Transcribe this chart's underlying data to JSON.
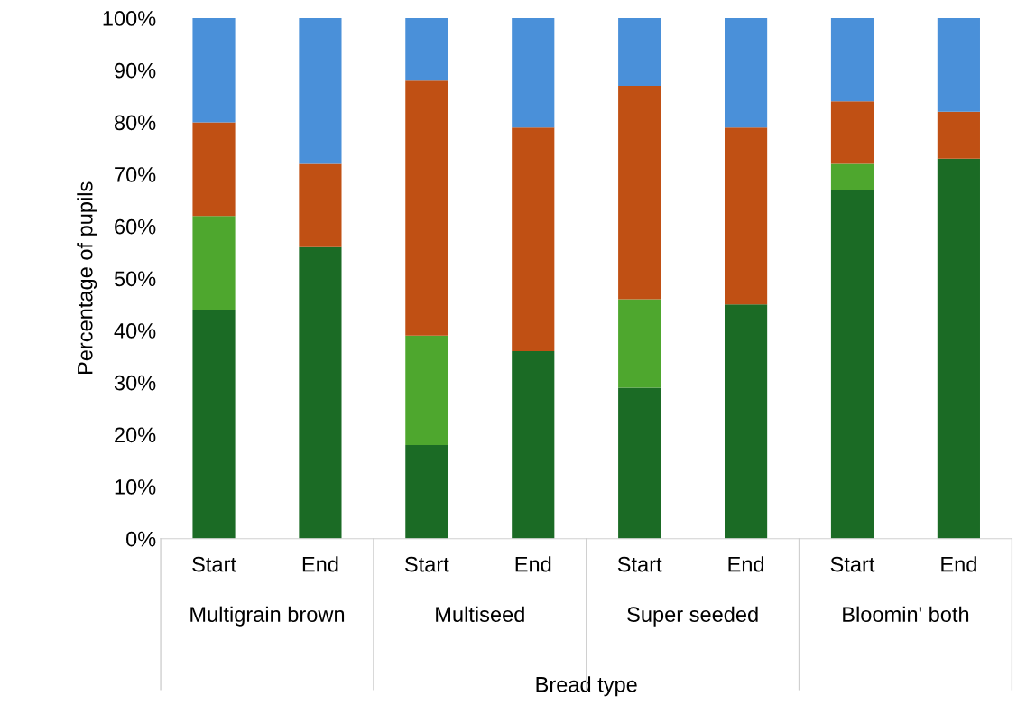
{
  "chart_data": {
    "type": "bar",
    "stacked": true,
    "xlabel": "Bread type",
    "ylabel": "Percentage of pupils",
    "categories": [
      "Start",
      "End",
      "Start",
      "End",
      "Start",
      "End",
      "Start",
      "End"
    ],
    "annotations": [
      "Multigrain brown",
      "Multiseed",
      "Super seeded",
      "Bloomin' both"
    ],
    "series": [
      {
        "color": "#1b6b25",
        "values": [
          44,
          56,
          18,
          36,
          29,
          45,
          67,
          73
        ]
      },
      {
        "color": "#4ea72e",
        "values": [
          18,
          null,
          21,
          null,
          17,
          null,
          5,
          null
        ]
      },
      {
        "color": "#c05014",
        "values": [
          18,
          16,
          49,
          43,
          41,
          34,
          12,
          9
        ]
      },
      {
        "color": "#4a90d9",
        "values": [
          20,
          28,
          12,
          21,
          13,
          21,
          16,
          18
        ]
      }
    ],
    "ylim": [
      0,
      100
    ],
    "yticks": [
      {
        "value": 0,
        "label": "0%"
      },
      {
        "value": 10,
        "label": "10%"
      },
      {
        "value": 20,
        "label": "20%"
      },
      {
        "value": 30,
        "label": "30%"
      },
      {
        "value": 40,
        "label": "40%"
      },
      {
        "value": 50,
        "label": "50%"
      },
      {
        "value": 60,
        "label": "60%"
      },
      {
        "value": 70,
        "label": "70%"
      },
      {
        "value": 80,
        "label": "80%"
      },
      {
        "value": 90,
        "label": "90%"
      },
      {
        "value": 100,
        "label": "100%"
      }
    ],
    "grid": false,
    "legend": false
  }
}
